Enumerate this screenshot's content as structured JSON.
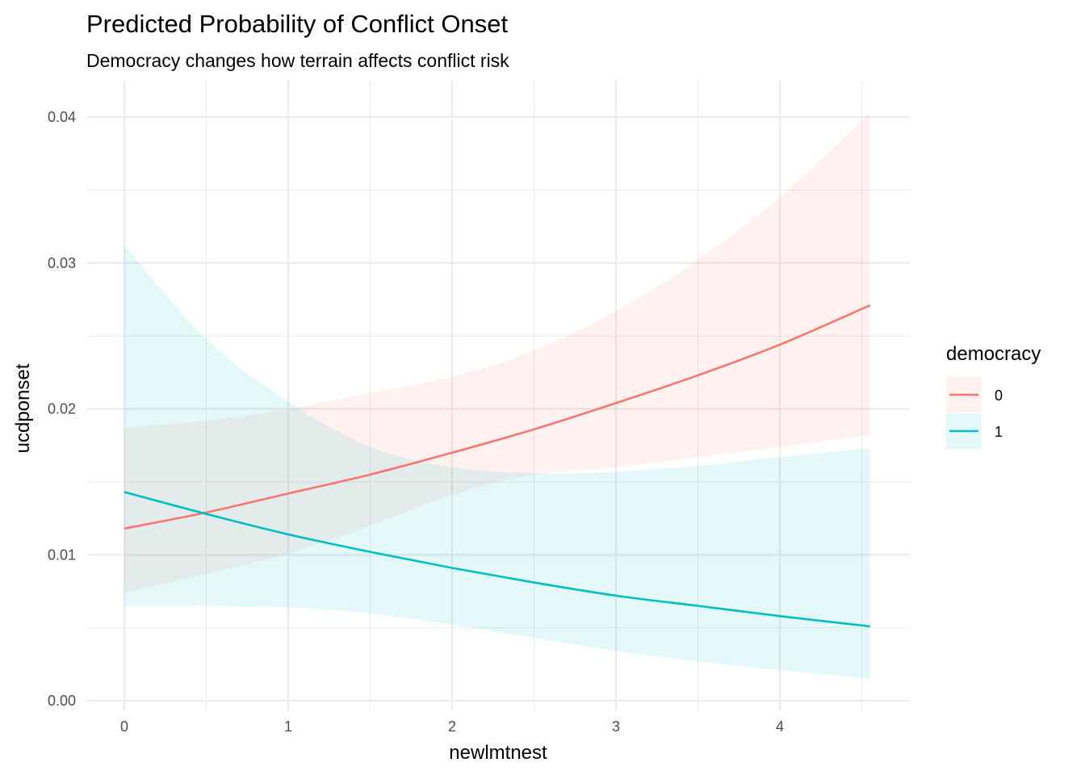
{
  "chart_data": {
    "type": "line",
    "title": "Predicted Probability of Conflict Onset",
    "subtitle": "Democracy changes how terrain affects conflict risk",
    "xlabel": "newlmtnest",
    "ylabel": "ucdponset",
    "xlim": [
      0,
      4.55
    ],
    "ylim": [
      0,
      0.04
    ],
    "x_ticks": [
      0,
      1,
      2,
      3,
      4
    ],
    "x_tick_labels": [
      "0",
      "1",
      "2",
      "3",
      "4"
    ],
    "y_ticks": [
      0,
      0.01,
      0.02,
      0.03,
      0.04
    ],
    "y_tick_labels": [
      "0.00",
      "0.01",
      "0.02",
      "0.03",
      "0.04"
    ],
    "grid": true,
    "legend": {
      "title": "democracy",
      "position": "right"
    },
    "x": [
      0,
      0.5,
      1,
      1.5,
      2,
      2.5,
      3,
      3.5,
      4,
      4.55
    ],
    "series": [
      {
        "name": "0",
        "color": "#F8766D",
        "band_color": "#F8766D",
        "values": [
          0.0118,
          0.0129,
          0.0142,
          0.0155,
          0.017,
          0.0186,
          0.0204,
          0.0223,
          0.0244,
          0.0271
        ],
        "lower": [
          0.0074,
          0.0087,
          0.0101,
          0.012,
          0.0141,
          0.0155,
          0.016,
          0.0167,
          0.0174,
          0.0182
        ],
        "upper": [
          0.0187,
          0.0192,
          0.02,
          0.0211,
          0.0222,
          0.024,
          0.0267,
          0.0302,
          0.0345,
          0.0403
        ]
      },
      {
        "name": "1",
        "color": "#00BFC4",
        "band_color": "#00BFC4",
        "values": [
          0.0143,
          0.0128,
          0.0114,
          0.0102,
          0.0091,
          0.0081,
          0.0072,
          0.0065,
          0.0058,
          0.0051
        ],
        "lower": [
          0.0065,
          0.0065,
          0.0064,
          0.006,
          0.0052,
          0.0043,
          0.0034,
          0.0027,
          0.0021,
          0.0015
        ],
        "upper": [
          0.0312,
          0.0248,
          0.0205,
          0.0174,
          0.016,
          0.0156,
          0.0157,
          0.0161,
          0.0167,
          0.0173
        ]
      }
    ]
  }
}
